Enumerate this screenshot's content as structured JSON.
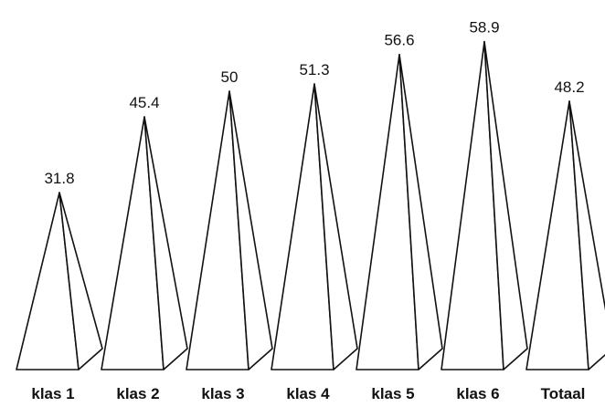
{
  "chart_data": {
    "type": "bar",
    "categories": [
      "klas 1",
      "klas 2",
      "klas 3",
      "klas 4",
      "klas 5",
      "klas 6",
      "Totaal"
    ],
    "values": [
      31.8,
      45.4,
      50,
      51.3,
      56.6,
      58.9,
      48.2
    ],
    "value_labels": [
      "31.8",
      "45.4",
      "50",
      "51.3",
      "56.6",
      "58.9",
      "48.2"
    ],
    "ylim": [
      0,
      60
    ],
    "grid": false,
    "legend": "none",
    "bar_shape": "pyramid"
  }
}
